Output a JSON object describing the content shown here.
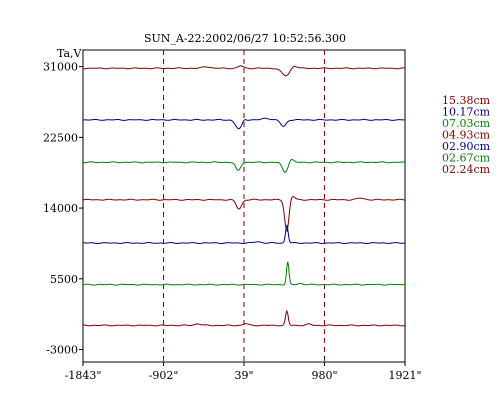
{
  "chart_data": {
    "type": "line",
    "title": "SUN_A-22:2002/06/27 10:52:56.300",
    "ylabel": "Ta,V",
    "xlabel": "",
    "x_ticks": [
      "-1843\"",
      "-902\"",
      "39\"",
      "980\"",
      "1921\""
    ],
    "x_tick_values": [
      -1843,
      -902,
      39,
      980,
      1921
    ],
    "xlim": [
      -1843,
      1921
    ],
    "y_ticks": [
      "31000",
      "22500",
      "14000",
      "5500",
      "-3000"
    ],
    "y_tick_values": [
      31000,
      22500,
      14000,
      5500,
      -3000
    ],
    "ylim": [
      -4500,
      33000
    ],
    "vlines": [
      -902,
      39,
      980
    ],
    "series": [
      {
        "name": "15.38cm",
        "color": "#800000",
        "baseline": 30800,
        "features": [
          {
            "x": 530,
            "amp": -900,
            "width": 70
          },
          {
            "x": 620,
            "amp": 400,
            "width": 50
          },
          {
            "x": 0,
            "amp": 300,
            "width": 40
          },
          {
            "x": -400,
            "amp": 200,
            "width": 60
          }
        ]
      },
      {
        "name": "10.17cm",
        "color": "#000080",
        "baseline": 24600,
        "features": [
          {
            "x": -20,
            "amp": -1100,
            "width": 55
          },
          {
            "x": 40,
            "amp": 300,
            "width": 30
          },
          {
            "x": 500,
            "amp": -800,
            "width": 45
          },
          {
            "x": 300,
            "amp": 200,
            "width": 60
          }
        ]
      },
      {
        "name": "07.03cm",
        "color": "#008000",
        "baseline": 19500,
        "features": [
          {
            "x": -30,
            "amp": -1000,
            "width": 40
          },
          {
            "x": 520,
            "amp": -1200,
            "width": 45
          },
          {
            "x": 590,
            "amp": 400,
            "width": 40
          }
        ]
      },
      {
        "name": "04.93cm",
        "color": "#800000",
        "baseline": 15000,
        "features": [
          {
            "x": -20,
            "amp": -1100,
            "width": 45
          },
          {
            "x": 540,
            "amp": -3800,
            "width": 35
          },
          {
            "x": 600,
            "amp": 500,
            "width": 40
          },
          {
            "x": 1400,
            "amp": 200,
            "width": 60
          }
        ]
      },
      {
        "name": "02.90cm",
        "color": "#000080",
        "baseline": 9800,
        "features": [
          {
            "x": 540,
            "amp": 2100,
            "width": 22
          },
          {
            "x": 200,
            "amp": 150,
            "width": 60
          }
        ]
      },
      {
        "name": "02.67cm",
        "color": "#008000",
        "baseline": 4800,
        "features": [
          {
            "x": 550,
            "amp": 2700,
            "width": 20
          },
          {
            "x": 700,
            "amp": 150,
            "width": 40
          }
        ]
      },
      {
        "name": "02.24cm",
        "color": "#800000",
        "baseline": -100,
        "features": [
          {
            "x": 540,
            "amp": 1700,
            "width": 22
          },
          {
            "x": -500,
            "amp": 200,
            "width": 50
          },
          {
            "x": 60,
            "amp": 200,
            "width": 40
          },
          {
            "x": 800,
            "amp": 150,
            "width": 40
          }
        ]
      }
    ],
    "grid": false,
    "legend_position": "right"
  }
}
